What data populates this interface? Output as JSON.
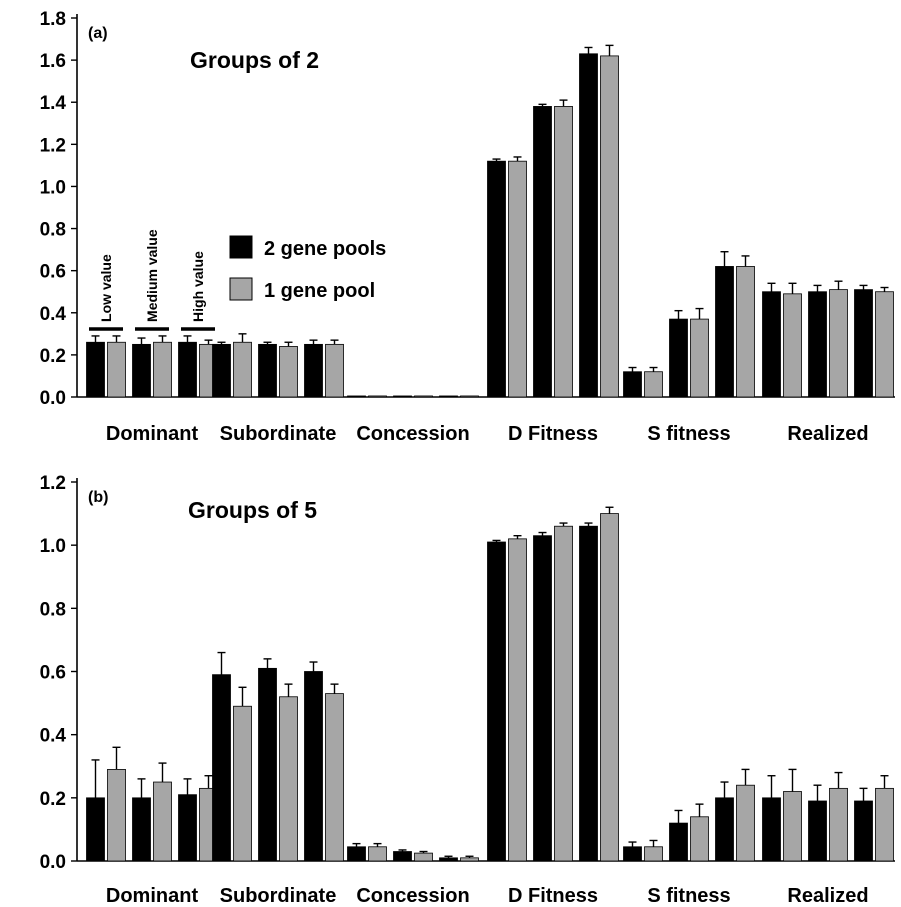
{
  "chart_data": [
    {
      "type": "bar",
      "panel_label": "(a)",
      "title": "Groups of 2",
      "ylim": [
        0,
        1.8
      ],
      "yticks": [
        "0.0",
        "0.2",
        "0.4",
        "0.6",
        "0.8",
        "1.0",
        "1.2",
        "1.4",
        "1.6",
        "1.8"
      ],
      "categories": [
        "Dominant",
        "Subordinate",
        "Concession",
        "D Fitness",
        "S fitness",
        "Realized"
      ],
      "sub_levels": [
        "Low value",
        "Medium value",
        "High value"
      ],
      "legend": {
        "placement": "upper-left",
        "entries": [
          "2 gene pools",
          "1 gene pool"
        ]
      },
      "series": [
        {
          "name": "2 gene pools",
          "color": "#000000",
          "values": [
            [
              0.26,
              0.25,
              0.26
            ],
            [
              0.25,
              0.25,
              0.25
            ],
            [
              0.005,
              0.005,
              0.005
            ],
            [
              1.12,
              1.38,
              1.63
            ],
            [
              0.12,
              0.37,
              0.62
            ],
            [
              0.5,
              0.5,
              0.51
            ]
          ],
          "errors": [
            [
              0.03,
              0.03,
              0.03
            ],
            [
              0.01,
              0.01,
              0.02
            ],
            [
              0.0,
              0.0,
              0.0
            ],
            [
              0.01,
              0.01,
              0.03
            ],
            [
              0.02,
              0.04,
              0.07
            ],
            [
              0.04,
              0.03,
              0.02
            ]
          ]
        },
        {
          "name": "1 gene pool",
          "color": "#a6a6a6",
          "values": [
            [
              0.26,
              0.26,
              0.25
            ],
            [
              0.26,
              0.24,
              0.25
            ],
            [
              0.005,
              0.005,
              0.005
            ],
            [
              1.12,
              1.38,
              1.62
            ],
            [
              0.12,
              0.37,
              0.62
            ],
            [
              0.49,
              0.51,
              0.5
            ]
          ],
          "errors": [
            [
              0.03,
              0.03,
              0.02
            ],
            [
              0.04,
              0.02,
              0.02
            ],
            [
              0.0,
              0.0,
              0.0
            ],
            [
              0.02,
              0.03,
              0.05
            ],
            [
              0.02,
              0.05,
              0.05
            ],
            [
              0.05,
              0.04,
              0.02
            ]
          ]
        }
      ]
    },
    {
      "type": "bar",
      "panel_label": "(b)",
      "title": "Groups of 5",
      "ylim": [
        0,
        1.2
      ],
      "yticks": [
        "0.0",
        "0.2",
        "0.4",
        "0.6",
        "0.8",
        "1.0",
        "1.2"
      ],
      "categories": [
        "Dominant",
        "Subordinate",
        "Concession",
        "D Fitness",
        "S fitness",
        "Realized"
      ],
      "series": [
        {
          "name": "2 gene pools",
          "color": "#000000",
          "values": [
            [
              0.2,
              0.2,
              0.21
            ],
            [
              0.59,
              0.61,
              0.6
            ],
            [
              0.045,
              0.03,
              0.01
            ],
            [
              1.01,
              1.03,
              1.06
            ],
            [
              0.045,
              0.12,
              0.2
            ],
            [
              0.2,
              0.19,
              0.19
            ]
          ],
          "errors": [
            [
              0.12,
              0.06,
              0.05
            ],
            [
              0.07,
              0.03,
              0.03
            ],
            [
              0.01,
              0.005,
              0.005
            ],
            [
              0.005,
              0.01,
              0.01
            ],
            [
              0.015,
              0.04,
              0.05
            ],
            [
              0.07,
              0.05,
              0.04
            ]
          ]
        },
        {
          "name": "1 gene pool",
          "color": "#a6a6a6",
          "values": [
            [
              0.29,
              0.25,
              0.23
            ],
            [
              0.49,
              0.52,
              0.53
            ],
            [
              0.045,
              0.025,
              0.01
            ],
            [
              1.02,
              1.06,
              1.1
            ],
            [
              0.045,
              0.14,
              0.24
            ],
            [
              0.22,
              0.23,
              0.23
            ]
          ],
          "errors": [
            [
              0.07,
              0.06,
              0.04
            ],
            [
              0.06,
              0.04,
              0.03
            ],
            [
              0.01,
              0.005,
              0.005
            ],
            [
              0.01,
              0.01,
              0.02
            ],
            [
              0.02,
              0.04,
              0.05
            ],
            [
              0.07,
              0.05,
              0.04
            ]
          ]
        }
      ]
    }
  ]
}
